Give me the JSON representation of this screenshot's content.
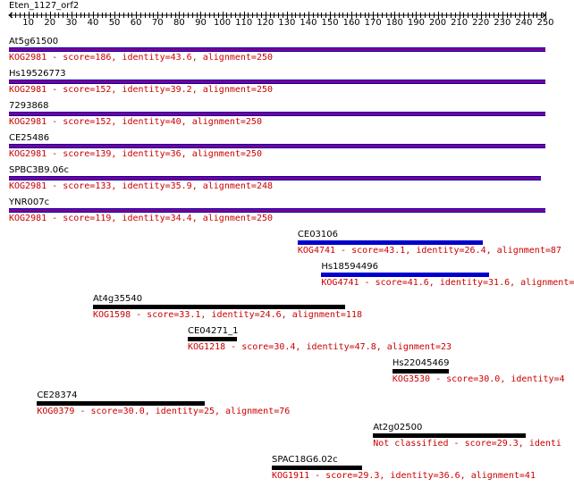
{
  "query_name": "Eten_1127_orf2",
  "axis": {
    "min": 1,
    "max": 250,
    "tick_labels": [
      "10",
      "20",
      "30",
      "40",
      "50",
      "60",
      "70",
      "80",
      "90",
      "100",
      "110",
      "120",
      "130",
      "140",
      "150",
      "160",
      "170",
      "180",
      "190",
      "200",
      "210",
      "220",
      "230",
      "240",
      "250"
    ]
  },
  "colors": {
    "purple_bar": "#800080",
    "blue_bar": "#0000cc",
    "black_bar": "#000000",
    "detail_text": "#cc0000"
  },
  "hits": [
    {
      "name": "At5g61500",
      "detail": "KOG2981 - score=186, identity=43.6, alignment=250",
      "start": 1,
      "end": 250,
      "color": "purple"
    },
    {
      "name": "Hs19526773",
      "detail": "KOG2981 - score=152, identity=39.2, alignment=250",
      "start": 1,
      "end": 250,
      "color": "purple"
    },
    {
      "name": "7293868",
      "detail": "KOG2981 - score=152, identity=40, alignment=250",
      "start": 1,
      "end": 250,
      "color": "purple"
    },
    {
      "name": "CE25486",
      "detail": "KOG2981 - score=139, identity=36, alignment=250",
      "start": 1,
      "end": 250,
      "color": "purple"
    },
    {
      "name": "SPBC3B9.06c",
      "detail": "KOG2981 - score=133, identity=35.9, alignment=248",
      "start": 1,
      "end": 248,
      "color": "purple"
    },
    {
      "name": "YNR007c",
      "detail": "KOG2981 - score=119, identity=34.4, alignment=250",
      "start": 1,
      "end": 250,
      "color": "purple"
    },
    {
      "name": "CE03106",
      "detail": "KOG4741 - score=43.1, identity=26.4, alignment=87",
      "start": 135,
      "end": 221,
      "color": "blue"
    },
    {
      "name": "Hs18594496",
      "detail": "KOG4741 - score=41.6, identity=31.6, alignment=",
      "start": 146,
      "end": 224,
      "color": "blue"
    },
    {
      "name": "At4g35540",
      "detail": "KOG1598 - score=33.1, identity=24.6, alignment=118",
      "start": 40,
      "end": 157,
      "color": "black"
    },
    {
      "name": "CE04271_1",
      "detail": "KOG1218 - score=30.4, identity=47.8, alignment=23",
      "start": 84,
      "end": 107,
      "color": "black"
    },
    {
      "name": "Hs22045469",
      "detail": "KOG3530 - score=30.0, identity=4",
      "start": 179,
      "end": 205,
      "color": "black"
    },
    {
      "name": "CE28374",
      "detail": "KOG0379 - score=30.0, identity=25, alignment=76",
      "start": 14,
      "end": 92,
      "color": "black"
    },
    {
      "name": "At2g02500",
      "detail": "Not classified - score=29.3, identi",
      "start": 170,
      "end": 241,
      "color": "black"
    },
    {
      "name": "SPAC18G6.02c",
      "detail": "KOG1911 - score=29.3, identity=36.6, alignment=41",
      "start": 123,
      "end": 165,
      "color": "black"
    }
  ]
}
